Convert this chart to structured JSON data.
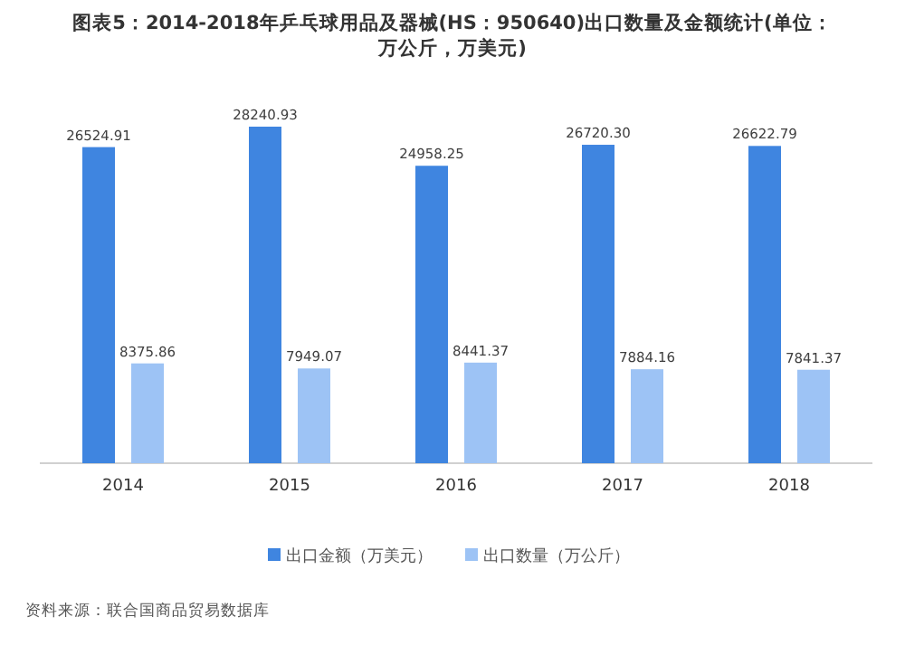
{
  "chart_data": {
    "type": "bar",
    "title": "图表5：2014-2018年乒乓球用品及器械(HS：950640)出口数量及金额统计(单位：万公斤，万美元)",
    "categories": [
      "2014",
      "2015",
      "2016",
      "2017",
      "2018"
    ],
    "series": [
      {
        "name": "出口金额（万美元）",
        "color": "#3f85e0",
        "values": [
          26524.91,
          28240.93,
          24958.25,
          26720.3,
          26622.79
        ],
        "value_labels": [
          "26524.91",
          "28240.93",
          "24958.25",
          "26720.30",
          "26622.79"
        ]
      },
      {
        "name": "出口数量（万公斤）",
        "color": "#9dc3f5",
        "values": [
          8375.86,
          7949.07,
          8441.37,
          7884.16,
          7841.37
        ],
        "value_labels": [
          "8375.86",
          "7949.07",
          "8441.37",
          "7884.16",
          "7841.37"
        ]
      }
    ],
    "legend": "bottom",
    "annotations": [
      "资料来源：联合国商品贸易数据库"
    ]
  }
}
